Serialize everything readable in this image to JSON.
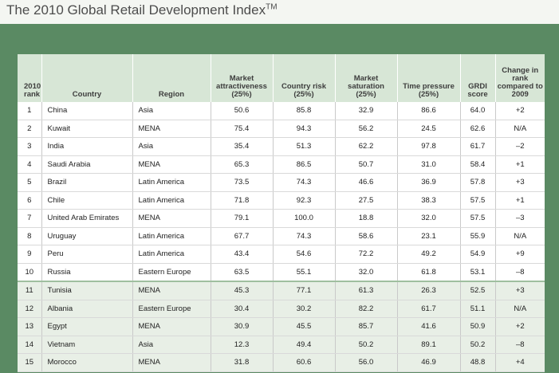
{
  "page": {
    "title": "The 2010 Global Retail Development Index",
    "title_mark": "TM"
  },
  "chart_data": {
    "type": "table",
    "title": "The 2010 Global Retail Development Index™",
    "columns": [
      "2010 rank",
      "Country",
      "Region",
      "Market attractiveness (25%)",
      "Country risk (25%)",
      "Market saturation (25%)",
      "Time pressure (25%)",
      "GRDI score",
      "Change in rank compared to 2009"
    ],
    "rows": [
      [
        "1",
        "China",
        "Asia",
        "50.6",
        "85.8",
        "32.9",
        "86.6",
        "64.0",
        "+2"
      ],
      [
        "2",
        "Kuwait",
        "MENA",
        "75.4",
        "94.3",
        "56.2",
        "24.5",
        "62.6",
        "N/A"
      ],
      [
        "3",
        "India",
        "Asia",
        "35.4",
        "51.3",
        "62.2",
        "97.8",
        "61.7",
        "–2"
      ],
      [
        "4",
        "Saudi Arabia",
        "MENA",
        "65.3",
        "86.5",
        "50.7",
        "31.0",
        "58.4",
        "+1"
      ],
      [
        "5",
        "Brazil",
        "Latin America",
        "73.5",
        "74.3",
        "46.6",
        "36.9",
        "57.8",
        "+3"
      ],
      [
        "6",
        "Chile",
        "Latin America",
        "71.8",
        "92.3",
        "27.5",
        "38.3",
        "57.5",
        "+1"
      ],
      [
        "7",
        "United Arab Emirates",
        "MENA",
        "79.1",
        "100.0",
        "18.8",
        "32.0",
        "57.5",
        "–3"
      ],
      [
        "8",
        "Uruguay",
        "Latin America",
        "67.7",
        "74.3",
        "58.6",
        "23.1",
        "55.9",
        "N/A"
      ],
      [
        "9",
        "Peru",
        "Latin America",
        "43.4",
        "54.6",
        "72.2",
        "49.2",
        "54.9",
        "+9"
      ],
      [
        "10",
        "Russia",
        "Eastern Europe",
        "63.5",
        "55.1",
        "32.0",
        "61.8",
        "53.1",
        "–8"
      ],
      [
        "11",
        "Tunisia",
        "MENA",
        "45.3",
        "77.1",
        "61.3",
        "26.3",
        "52.5",
        "+3"
      ],
      [
        "12",
        "Albania",
        "Eastern Europe",
        "30.4",
        "30.2",
        "82.2",
        "61.7",
        "51.1",
        "N/A"
      ],
      [
        "13",
        "Egypt",
        "MENA",
        "30.9",
        "45.5",
        "85.7",
        "41.6",
        "50.9",
        "+2"
      ],
      [
        "14",
        "Vietnam",
        "Asia",
        "12.3",
        "49.4",
        "50.2",
        "89.1",
        "50.2",
        "–8"
      ],
      [
        "15",
        "Morocco",
        "MENA",
        "31.8",
        "60.6",
        "56.0",
        "46.9",
        "48.8",
        "+4"
      ]
    ]
  },
  "colors": {
    "background": "#5a8a63",
    "header_fill": "#d7e6d6",
    "top_rows_fill": "#ffffff",
    "bottom_rows_fill": "#e8efe6"
  }
}
